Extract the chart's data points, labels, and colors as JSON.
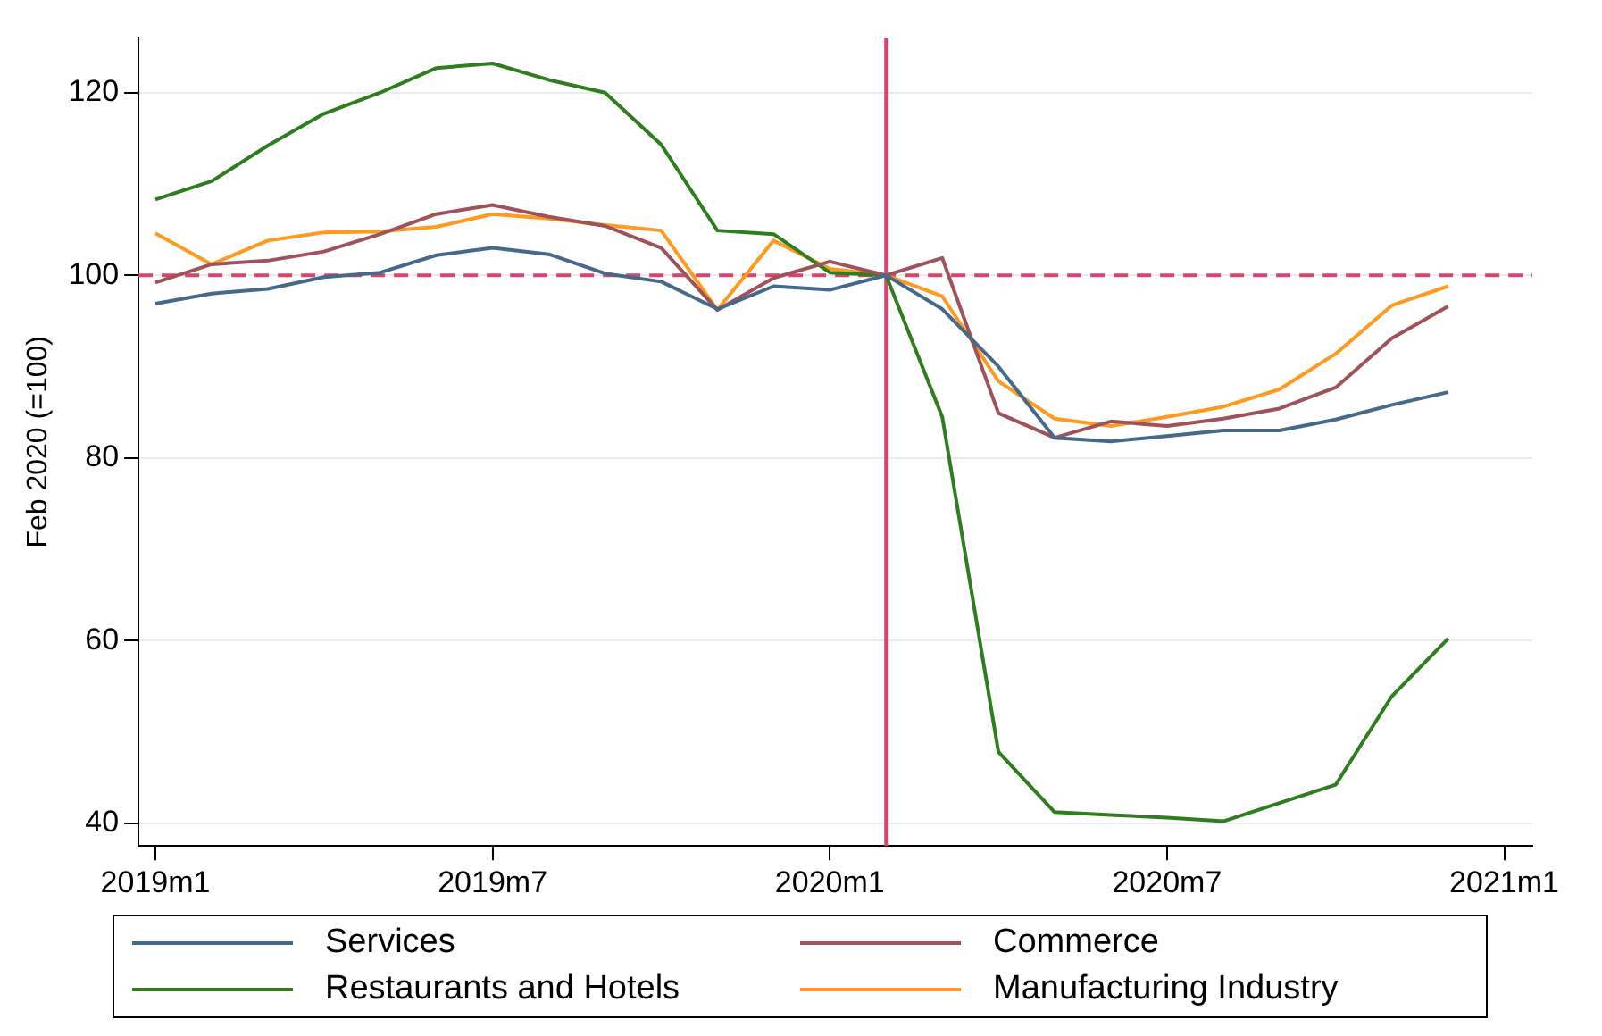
{
  "chart_data": {
    "type": "line",
    "ylabel": "Feb 2020 (=100)",
    "categories": [
      "2019m1",
      null,
      null,
      null,
      null,
      null,
      "2019m7",
      null,
      null,
      null,
      null,
      null,
      "2020m1",
      null,
      null,
      null,
      null,
      null,
      "2020m7",
      null,
      null,
      null,
      null,
      null,
      "2021m1"
    ],
    "ylim": [
      37.5,
      126
    ],
    "yticks": [
      40,
      60,
      80,
      100,
      120
    ],
    "grid": "y",
    "legend": "bottom",
    "marker": "none",
    "line_style": "solid",
    "series": [
      {
        "name": "Services",
        "color": "#44698a",
        "values": [
          96.9,
          98,
          98.5,
          99.8,
          100.3,
          102.2,
          103,
          102.3,
          100.2,
          99.3,
          96.3,
          98.8,
          98.4,
          100,
          96.3,
          90,
          82.2,
          81.8,
          82.4,
          83,
          83,
          84.2,
          85.8,
          87.2,
          null
        ]
      },
      {
        "name": "Commerce",
        "color": "#a0525a",
        "values": [
          99.2,
          101.2,
          101.6,
          102.6,
          104.5,
          106.7,
          107.7,
          106.4,
          105.4,
          103,
          96.2,
          99.7,
          101.5,
          100,
          101.9,
          84.9,
          82.2,
          84,
          83.5,
          84.3,
          85.4,
          87.7,
          93.1,
          96.6,
          null
        ]
      },
      {
        "name": "Restaurants and Hotels",
        "color": "#2e7d1e",
        "values": [
          108.3,
          110.3,
          114.2,
          117.7,
          120,
          122.7,
          123.2,
          121.4,
          120,
          114.3,
          104.9,
          104.5,
          100.3,
          100,
          84.5,
          47.8,
          41.2,
          40.9,
          40.6,
          40.2,
          42.2,
          44.2,
          53.9,
          60.2,
          null
        ]
      },
      {
        "name": "Manufacturing Industry",
        "color": "#ff9a1f",
        "values": [
          104.6,
          101.2,
          103.8,
          104.7,
          104.8,
          105.3,
          106.7,
          106.2,
          105.5,
          104.9,
          96.2,
          103.8,
          100.7,
          100,
          97.7,
          88.4,
          84.3,
          83.5,
          84.5,
          85.6,
          87.5,
          91.4,
          96.7,
          98.8,
          null
        ]
      }
    ],
    "ref_lines": [
      {
        "axis": "y",
        "value": 100,
        "color": "#d6456b",
        "line_style": "dashed"
      }
    ]
  }
}
